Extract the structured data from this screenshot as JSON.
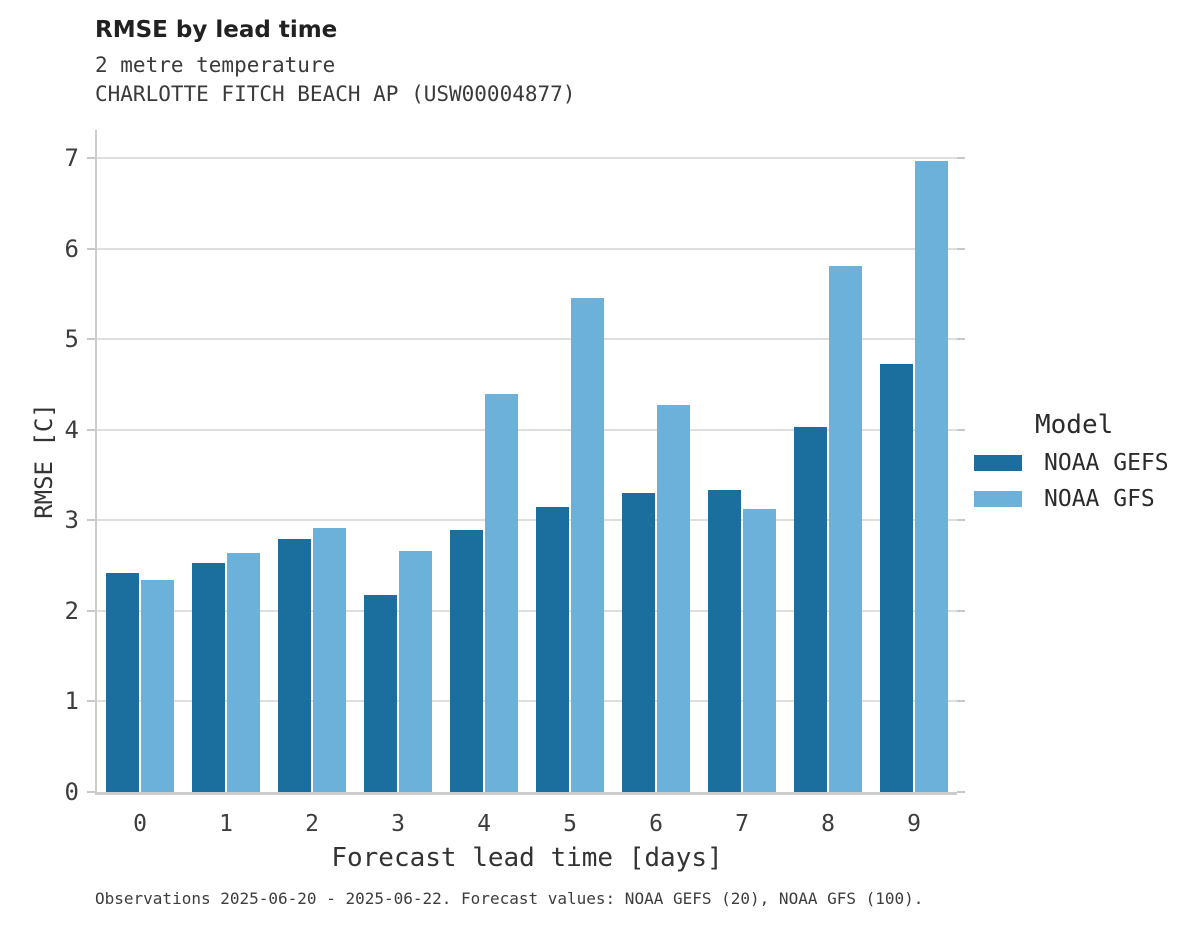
{
  "header": {
    "title": "RMSE by lead time",
    "subtitle_variable": "2 metre temperature",
    "subtitle_station": "CHARLOTTE FITCH BEACH AP (USW00004877)"
  },
  "chart_data": {
    "type": "bar",
    "title": "RMSE by lead time",
    "subtitle": "2 metre temperature",
    "station": "CHARLOTTE FITCH BEACH AP (USW00004877)",
    "xlabel": "Forecast lead time [days]",
    "ylabel": "RMSE [C]",
    "categories": [
      "0",
      "1",
      "2",
      "3",
      "4",
      "5",
      "6",
      "7",
      "8",
      "9"
    ],
    "series": [
      {
        "name": "NOAA GEFS",
        "color": "#1a6f9e",
        "values": [
          2.42,
          2.53,
          2.79,
          2.18,
          2.89,
          3.15,
          3.3,
          3.33,
          4.03,
          4.73
        ]
      },
      {
        "name": "NOAA GFS",
        "color": "#6cb1d9",
        "values": [
          2.34,
          2.64,
          2.92,
          2.66,
          4.39,
          5.46,
          4.27,
          3.13,
          5.81,
          6.97
        ]
      }
    ],
    "ylim": [
      0,
      7.31
    ],
    "y_ticks": [
      "0",
      "1",
      "2",
      "3",
      "4",
      "5",
      "6",
      "7"
    ],
    "grid": "horizontal",
    "legend_title": "Model",
    "legend_position": "right"
  },
  "legend": {
    "title": "Model",
    "entries": [
      {
        "label": "NOAA GEFS",
        "color": "#1a6f9e"
      },
      {
        "label": "NOAA GFS",
        "color": "#6cb1d9"
      }
    ]
  },
  "footer": {
    "note": "Observations 2025-06-20 - 2025-06-22. Forecast values: NOAA GEFS (20), NOAA GFS (100)."
  },
  "colors": {
    "gefs_bar": "#1a6f9e",
    "gfs_bar": "#6cb1d9",
    "gridline": "#dedede",
    "axis_spine": "#cccccc",
    "title_text": "#212121",
    "tick_text": "#3d3d3d"
  }
}
